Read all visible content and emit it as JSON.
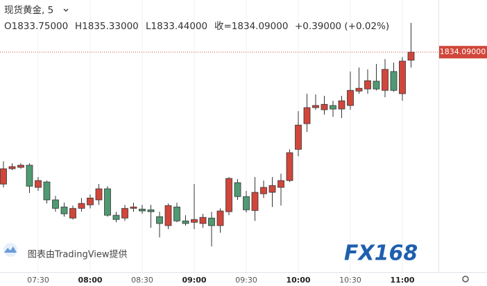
{
  "chart_data": {
    "type": "candlestick",
    "title": "现货黄金, 5",
    "ohlc_header": [
      "O1833.75000",
      "H1835.33000",
      "L1833.44000",
      "收=1834.09000",
      "+0.39000 (+0.02%)"
    ],
    "watermark": "图表由TradingView提供",
    "logo": "FX168",
    "categories": [
      null,
      null,
      null,
      null,
      "07:30",
      null,
      null,
      null,
      null,
      null,
      "08:00",
      null,
      null,
      null,
      null,
      null,
      "08:30",
      null,
      null,
      null,
      null,
      null,
      "09:00",
      null,
      null,
      null,
      null,
      null,
      "09:30",
      null,
      null,
      null,
      null,
      null,
      "10:00",
      null,
      null,
      null,
      null,
      null,
      "10:30",
      null,
      null,
      null,
      null,
      null,
      "11:00",
      null
    ],
    "open": [
      1828.5,
      1829.15,
      1829.21,
      1829.3,
      1828.36,
      1828.59,
      1827.83,
      1827.53,
      1827.06,
      1827.47,
      1827.62,
      1827.83,
      1828.3,
      1827.18,
      1827.06,
      1827.47,
      1827.44,
      1827.41,
      1827.12,
      1826.74,
      1827.53,
      1826.94,
      1826.88,
      1826.83,
      1827.06,
      1826.74,
      1827.33,
      1828.56,
      1827.97,
      1827.38,
      1828.09,
      1828.15,
      1828.36,
      1828.65,
      1829.97,
      1831.06,
      1831.74,
      1831.65,
      1831.83,
      1831.68,
      1831.83,
      1832.44,
      1832.53,
      1832.86,
      1832.47,
      1833.27,
      1832.33,
      1833.75
    ],
    "high": [
      1829.47,
      1829.38,
      1829.38,
      1829.38,
      1828.8,
      1828.65,
      1828.0,
      1827.71,
      1827.59,
      1827.91,
      1828.06,
      1828.5,
      1828.41,
      1827.33,
      1827.62,
      1827.71,
      1827.62,
      1827.62,
      1827.33,
      1827.68,
      1827.71,
      1827.18,
      1828.5,
      1827.24,
      1827.33,
      1827.47,
      1828.8,
      1828.71,
      1828.21,
      1828.8,
      1828.65,
      1828.8,
      1828.94,
      1829.97,
      1831.59,
      1832.33,
      1832.3,
      1832.24,
      1832.03,
      1832.24,
      1833.27,
      1833.44,
      1833.36,
      1833.59,
      1833.8,
      1833.65,
      1833.88,
      1835.33
    ],
    "low": [
      1828.36,
      1829.09,
      1829.15,
      1828.12,
      1828.21,
      1827.68,
      1827.33,
      1827.12,
      1827.0,
      1827.33,
      1827.47,
      1827.62,
      1827.12,
      1826.88,
      1826.94,
      1827.33,
      1827.24,
      1826.65,
      1826.24,
      1826.59,
      1826.88,
      1826.74,
      1826.59,
      1826.65,
      1825.86,
      1826.44,
      1827.18,
      1827.83,
      1827.3,
      1826.94,
      1827.91,
      1827.53,
      1827.59,
      1828.59,
      1829.68,
      1830.71,
      1831.65,
      1831.44,
      1831.35,
      1831.3,
      1831.65,
      1832.33,
      1832.33,
      1832.47,
      1832.18,
      1832.41,
      1832.03,
      1833.44
    ],
    "close": [
      1829.15,
      1829.24,
      1829.3,
      1828.41,
      1828.65,
      1827.83,
      1827.47,
      1827.24,
      1827.47,
      1827.68,
      1827.91,
      1828.3,
      1827.18,
      1827.0,
      1827.47,
      1827.53,
      1827.36,
      1827.33,
      1826.83,
      1827.59,
      1826.94,
      1826.83,
      1827.0,
      1827.09,
      1826.74,
      1827.36,
      1828.74,
      1827.97,
      1827.41,
      1828.15,
      1828.36,
      1828.44,
      1828.65,
      1829.83,
      1831.0,
      1831.74,
      1831.83,
      1831.88,
      1831.68,
      1832.03,
      1832.47,
      1832.56,
      1832.88,
      1832.53,
      1833.36,
      1832.47,
      1833.71,
      1834.09
    ],
    "up_color": "#d1463b",
    "down_color": "#4f9a72",
    "last_price": {
      "value": 1834.09,
      "label": "1834.09000"
    },
    "ylim": [
      1824.77,
      1836.3
    ]
  }
}
